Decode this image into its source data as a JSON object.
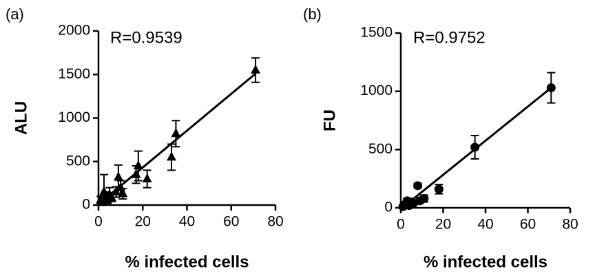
{
  "chart_data": [
    {
      "type": "scatter",
      "panel_label": "(a)",
      "annotation": "R=0.9539",
      "xlabel": "% infected cells",
      "ylabel": "ALU",
      "xlim": [
        0,
        80
      ],
      "xticks": [
        0,
        20,
        40,
        60,
        80
      ],
      "ylim": [
        0,
        2000
      ],
      "yticks": [
        0,
        500,
        1000,
        1500,
        2000
      ],
      "marker": "triangle",
      "color": "#000000",
      "x": [
        1,
        2,
        2.5,
        3,
        4,
        5,
        6,
        8,
        9,
        10,
        11,
        17,
        18,
        22,
        33,
        35,
        71
      ],
      "values": [
        60,
        30,
        150,
        100,
        60,
        120,
        80,
        150,
        320,
        200,
        130,
        350,
        450,
        300,
        550,
        820,
        1550
      ],
      "errors": [
        40,
        20,
        200,
        50,
        40,
        80,
        40,
        60,
        140,
        80,
        60,
        100,
        170,
        100,
        150,
        150,
        140
      ],
      "fit": {
        "x": [
          1,
          71
        ],
        "values": [
          30,
          1510
        ]
      }
    },
    {
      "type": "scatter",
      "panel_label": "(b)",
      "annotation": "R=0.9752",
      "xlabel": "% infected cells",
      "ylabel": "FU",
      "xlim": [
        0,
        80
      ],
      "xticks": [
        0,
        20,
        40,
        60,
        80
      ],
      "ylim": [
        0,
        1500
      ],
      "yticks": [
        0,
        500,
        1000,
        1500
      ],
      "marker": "circle",
      "color": "#000000",
      "x": [
        1,
        2,
        3,
        4,
        5,
        6,
        8,
        9,
        11,
        18,
        35,
        71
      ],
      "values": [
        10,
        30,
        60,
        20,
        50,
        40,
        190,
        60,
        80,
        160,
        520,
        1030
      ],
      "errors": [
        10,
        20,
        20,
        10,
        20,
        15,
        20,
        20,
        30,
        40,
        100,
        130
      ],
      "fit": {
        "x": [
          1,
          71
        ],
        "values": [
          5,
          1030
        ]
      }
    }
  ]
}
